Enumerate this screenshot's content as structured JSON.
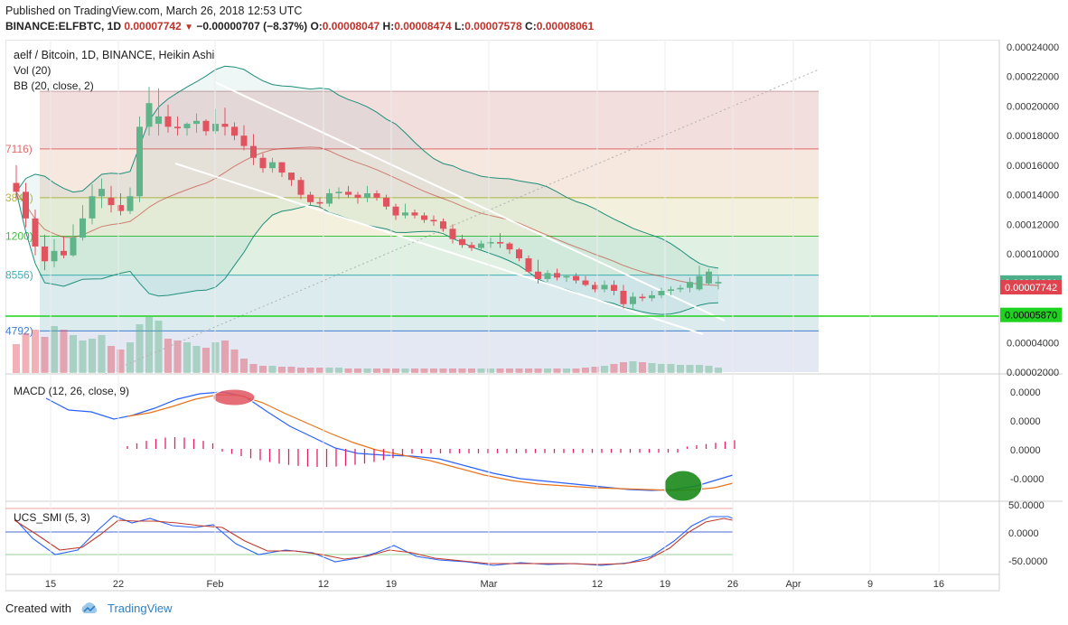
{
  "header": {
    "published": "Published on TradingView.com, March 26, 2018 12:53 UTC",
    "symbol": "BINANCE:ELFBTC, 1D",
    "last": "0.00007742",
    "change": "−0.00000707 (−8.37%)",
    "o_label": "O:",
    "o": "0.00008047",
    "h_label": "H:",
    "h": "0.00008474",
    "l_label": "L:",
    "l": "0.00007578",
    "c_label": "C:",
    "c": "0.00008061"
  },
  "legend": {
    "title": "aelf / Bitcoin, 1D, BINANCE, Heikin Ashi",
    "vol": "Vol (20)",
    "bb": "BB (20, close, 2)",
    "macd": "MACD (12, 26, close, 9)",
    "ucs": "UCS_SMI (5, 3)"
  },
  "fib_labels": [
    "7116)",
    "3844)",
    "1200)",
    "8556)",
    "4792)"
  ],
  "price_axis": [
    "0.00024000",
    "0.00022000",
    "0.00020000",
    "0.00018000",
    "0.00016000",
    "0.00014000",
    "0.00012000",
    "0.00010000",
    "0.00008000",
    "0.00006000",
    "0.00004000",
    "0.00002000"
  ],
  "price_tags": [
    {
      "value": "0.00008061",
      "color": "#4caf8a"
    },
    {
      "value": "0.00007742",
      "color": "#e0424e"
    },
    {
      "value": "0.00005870",
      "color": "#1fd21f"
    }
  ],
  "macd_axis": [
    "0.0000",
    "0.0000",
    "0.0000",
    "-0.0000"
  ],
  "smi_axis": [
    "50.0000",
    "0.0000",
    "-50.0000"
  ],
  "time_axis": [
    "15",
    "22",
    "Feb",
    "12",
    "19",
    "Mar",
    "12",
    "19",
    "26",
    "Apr",
    "9",
    "16"
  ],
  "footer": {
    "created": "Created with",
    "brand": "TradingView"
  },
  "colors": {
    "bull": "#5fb48a",
    "bear": "#e0535f",
    "bb": "#1f8f7a",
    "macd": "#2962ff",
    "signal": "#e8741c",
    "hist": "#e91e63",
    "green_level": "#1fd21f"
  },
  "chart_data": {
    "type": "candlestick",
    "title": "aelf / Bitcoin, 1D, BINANCE, Heikin Ashi",
    "ylim": [
      2e-05,
      0.00024
    ],
    "fib_levels": [
      0.00021,
      0.000171,
      0.000138,
      0.000112,
      8.56e-05,
      4.79e-05
    ],
    "green_level": 5.87e-05,
    "candles": [
      [
        0.000148,
        0.00016,
        0.000137,
        0.000142
      ],
      [
        0.000142,
        0.000148,
        0.000118,
        0.000124
      ],
      [
        0.000124,
        0.00013,
        9.9e-05,
        0.000105
      ],
      [
        0.000105,
        0.000113,
        8.9e-05,
        9.5e-05
      ],
      [
        9.5e-05,
        0.00011,
        9.1e-05,
        0.000102
      ],
      [
        0.000102,
        0.000112,
        9.7e-05,
        9.9e-05
      ],
      [
        9.9e-05,
        0.00012,
        9.8e-05,
        0.000111
      ],
      [
        0.000111,
        0.000133,
        0.000109,
        0.000124
      ],
      [
        0.000124,
        0.000147,
        0.00012,
        0.000139
      ],
      [
        0.000139,
        0.000151,
        0.000131,
        0.000144
      ],
      [
        0.000138,
        0.000146,
        0.000128,
        0.000133
      ],
      [
        0.000133,
        0.000141,
        0.000126,
        0.000129
      ],
      [
        0.000129,
        0.000145,
        0.000127,
        0.000139
      ],
      [
        0.000139,
        0.000193,
        0.000135,
        0.000186
      ],
      [
        0.000186,
        0.000213,
        0.00018,
        0.000202
      ],
      [
        0.000188,
        0.000212,
        0.00018,
        0.000193
      ],
      [
        0.000193,
        0.000201,
        0.000182,
        0.000186
      ],
      [
        0.000186,
        0.000193,
        0.00018,
        0.000185
      ],
      [
        0.000185,
        0.000189,
        0.00018,
        0.000188
      ],
      [
        0.000188,
        0.000195,
        0.000182,
        0.00019
      ],
      [
        0.00019,
        0.000191,
        0.00018,
        0.000183
      ],
      [
        0.000183,
        0.000198,
        0.000181,
        0.000188
      ],
      [
        0.000188,
        0.000199,
        0.00018,
        0.000186
      ],
      [
        0.000186,
        0.000189,
        0.000177,
        0.00018
      ],
      [
        0.00018,
        0.000187,
        0.00017,
        0.000173
      ],
      [
        0.000173,
        0.000181,
        0.00016,
        0.000165
      ],
      [
        0.000165,
        0.000168,
        0.000155,
        0.000158
      ],
      [
        0.000158,
        0.000165,
        0.000155,
        0.000162
      ],
      [
        0.000162,
        0.000162,
        0.000152,
        0.000155
      ],
      [
        0.000155,
        0.000155,
        0.000146,
        0.00015
      ],
      [
        0.00015,
        0.000152,
        0.000137,
        0.00014
      ],
      [
        0.00014,
        0.000142,
        0.000133,
        0.000135
      ],
      [
        0.000135,
        0.000138,
        0.000131,
        0.000134
      ],
      [
        0.000134,
        0.000144,
        0.000132,
        0.000141
      ],
      [
        0.000141,
        0.000145,
        0.000137,
        0.000142
      ],
      [
        0.000142,
        0.000146,
        0.000138,
        0.00014
      ],
      [
        0.00014,
        0.000142,
        0.000134,
        0.000138
      ],
      [
        0.000138,
        0.000146,
        0.000135,
        0.000141
      ],
      [
        0.000141,
        0.000143,
        0.000136,
        0.000138
      ],
      [
        0.000138,
        0.00014,
        0.00013,
        0.000132
      ],
      [
        0.000132,
        0.000134,
        0.000123,
        0.000126
      ],
      [
        0.000126,
        0.000134,
        0.000124,
        0.000128
      ],
      [
        0.000128,
        0.00013,
        0.000124,
        0.000126
      ],
      [
        0.000126,
        0.000128,
        0.000121,
        0.000123
      ],
      [
        0.000123,
        0.000126,
        0.000119,
        0.000122
      ],
      [
        0.000122,
        0.000124,
        0.000115,
        0.000117
      ],
      [
        0.000117,
        0.00012,
        0.000107,
        0.00011
      ],
      [
        0.00011,
        0.000113,
        0.000104,
        0.000106
      ],
      [
        0.000106,
        0.000108,
        0.000102,
        0.000104
      ],
      [
        0.000104,
        0.000109,
        0.000102,
        0.000107
      ],
      [
        0.000107,
        0.000111,
        0.000104,
        0.000108
      ],
      [
        0.000108,
        0.000114,
        0.000104,
        0.000107
      ],
      [
        0.000107,
        0.000108,
        0.0001,
        0.000103
      ],
      [
        0.000103,
        0.000104,
        9.5e-05,
        9.7e-05
      ],
      [
        9.7e-05,
        9.9e-05,
        8.7e-05,
        8.8e-05
      ],
      [
        8.8e-05,
        9.6e-05,
        8e-05,
        8.3e-05
      ],
      [
        8.3e-05,
        8.9e-05,
        8.1e-05,
        8.7e-05
      ],
      [
        8.7e-05,
        9e-05,
        8.2e-05,
        8.4e-05
      ],
      [
        8.4e-05,
        8.6e-05,
        8.1e-05,
        8.5e-05
      ],
      [
        8.5e-05,
        8.7e-05,
        8e-05,
        8.2e-05
      ],
      [
        8.2e-05,
        8.5e-05,
        7.8e-05,
        7.9e-05
      ],
      [
        7.9e-05,
        8.1e-05,
        7.4e-05,
        7.6e-05
      ],
      [
        7.6e-05,
        8.2e-05,
        7.4e-05,
        7.9e-05
      ],
      [
        7.9e-05,
        8.2e-05,
        7.2e-05,
        7.5e-05
      ],
      [
        7.5e-05,
        7.9e-05,
        6.3e-05,
        6.6e-05
      ],
      [
        6.6e-05,
        7.4e-05,
        6.2e-05,
        7.1e-05
      ],
      [
        7.1e-05,
        7.3e-05,
        6.8e-05,
        7e-05
      ],
      [
        7e-05,
        7.5e-05,
        6.8e-05,
        7.2e-05
      ],
      [
        7.2e-05,
        7.7e-05,
        7e-05,
        7.5e-05
      ],
      [
        7.5e-05,
        7.8e-05,
        7.2e-05,
        7.6e-05
      ],
      [
        7.6e-05,
        7.9e-05,
        7.4e-05,
        7.7e-05
      ],
      [
        7.7e-05,
        8.4e-05,
        7.4e-05,
        8.1e-05
      ],
      [
        7.6e-05,
        9.2e-05,
        7.5e-05,
        8.5e-05
      ],
      [
        8e-05,
        9e-05,
        7.9e-05,
        8.8e-05
      ],
      [
        8e-05,
        8.5e-05,
        7.6e-05,
        8.1e-05
      ]
    ],
    "volume": [
      32,
      44,
      48,
      40,
      52,
      48,
      42,
      36,
      38,
      42,
      30,
      26,
      34,
      54,
      62,
      58,
      38,
      36,
      34,
      30,
      28,
      34,
      36,
      26,
      16,
      10,
      8,
      8,
      7,
      7,
      6,
      6,
      6,
      6,
      6,
      5,
      5,
      5,
      5,
      5,
      5,
      5,
      5,
      5,
      5,
      5,
      5,
      5,
      5,
      5,
      5,
      5,
      5,
      5,
      5,
      5,
      5,
      5,
      5,
      5,
      6,
      7,
      8,
      10,
      12,
      13,
      12,
      11,
      10,
      10,
      9,
      9,
      9,
      8,
      6
    ]
  }
}
